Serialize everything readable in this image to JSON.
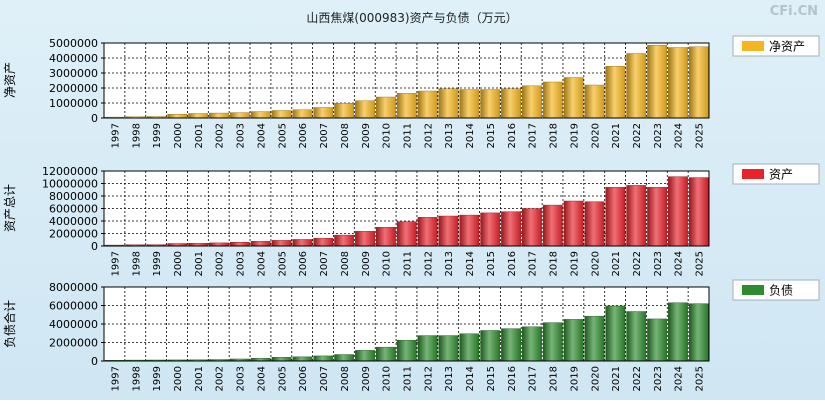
{
  "title": "山西焦煤(000983)资产与负债（万元）",
  "watermark": "CFi.CN",
  "colors": {
    "background_top": "#dff0f8",
    "background_bottom": "#cfe6f3",
    "net_assets": "#f5b51f",
    "assets": "#e8232b",
    "liabilities": "#2e8b2e"
  },
  "chart_data": [
    {
      "type": "bar",
      "id": "net-assets",
      "ylabel": "净资产",
      "legend": "净资产",
      "legend_position": "right",
      "ylim": [
        0,
        5000000
      ],
      "yticks": [
        0,
        1000000,
        2000000,
        3000000,
        4000000,
        5000000
      ],
      "ytick_labels": [
        "0",
        "1000000",
        "2000000",
        "3000000",
        "4000000",
        "5000000"
      ],
      "grid": true,
      "categories": [
        "1997",
        "1998",
        "1999",
        "2000",
        "2001",
        "2002",
        "2003",
        "2004",
        "2005",
        "2006",
        "2007",
        "2008",
        "2009",
        "2010",
        "2011",
        "2012",
        "2013",
        "2014",
        "2015",
        "2016",
        "2017",
        "2018",
        "2019",
        "2020",
        "2021",
        "2022",
        "2023",
        "2024",
        "2025"
      ],
      "values": [
        60000,
        80000,
        100000,
        250000,
        300000,
        330000,
        360000,
        430000,
        500000,
        550000,
        700000,
        980000,
        1150000,
        1400000,
        1650000,
        1800000,
        1950000,
        1900000,
        1900000,
        1950000,
        2150000,
        2400000,
        2700000,
        2200000,
        3450000,
        4300000,
        4850000,
        4700000,
        4750000
      ]
    },
    {
      "type": "bar",
      "id": "assets",
      "ylabel": "资产总计",
      "legend": "资产",
      "legend_position": "right",
      "ylim": [
        0,
        12000000
      ],
      "yticks": [
        0,
        2000000,
        4000000,
        6000000,
        8000000,
        10000000,
        12000000
      ],
      "ytick_labels": [
        "0",
        "2000000",
        "4000000",
        "6000000",
        "8000000",
        "10000000",
        "12000000"
      ],
      "grid": true,
      "categories": [
        "1997",
        "1998",
        "1999",
        "2000",
        "2001",
        "2002",
        "2003",
        "2004",
        "2005",
        "2006",
        "2007",
        "2008",
        "2009",
        "2010",
        "2011",
        "2012",
        "2013",
        "2014",
        "2015",
        "2016",
        "2017",
        "2018",
        "2019",
        "2020",
        "2021",
        "2022",
        "2023",
        "2024",
        "2025"
      ],
      "values": [
        150000,
        200000,
        220000,
        400000,
        450000,
        500000,
        600000,
        750000,
        900000,
        1050000,
        1250000,
        1750000,
        2350000,
        3000000,
        3900000,
        4600000,
        4800000,
        4950000,
        5300000,
        5500000,
        6000000,
        6550000,
        7200000,
        7100000,
        9400000,
        9700000,
        9400000,
        11100000,
        10950000
      ]
    },
    {
      "type": "bar",
      "id": "liabilities",
      "ylabel": "负债合计",
      "legend": "负债",
      "legend_position": "right",
      "ylim": [
        0,
        8000000
      ],
      "yticks": [
        0,
        2000000,
        4000000,
        6000000,
        8000000
      ],
      "ytick_labels": [
        "0",
        "2000000",
        "4000000",
        "6000000",
        "8000000"
      ],
      "grid": true,
      "categories": [
        "1997",
        "1998",
        "1999",
        "2000",
        "2001",
        "2002",
        "2003",
        "2004",
        "2005",
        "2006",
        "2007",
        "2008",
        "2009",
        "2010",
        "2011",
        "2012",
        "2013",
        "2014",
        "2015",
        "2016",
        "2017",
        "2018",
        "2019",
        "2020",
        "2021",
        "2022",
        "2023",
        "2024",
        "2025"
      ],
      "values": [
        80000,
        100000,
        110000,
        120000,
        130000,
        160000,
        220000,
        300000,
        400000,
        450000,
        550000,
        700000,
        1150000,
        1500000,
        2250000,
        2750000,
        2750000,
        2950000,
        3300000,
        3500000,
        3700000,
        4150000,
        4500000,
        4850000,
        5950000,
        5350000,
        4550000,
        6300000,
        6200000
      ]
    }
  ]
}
